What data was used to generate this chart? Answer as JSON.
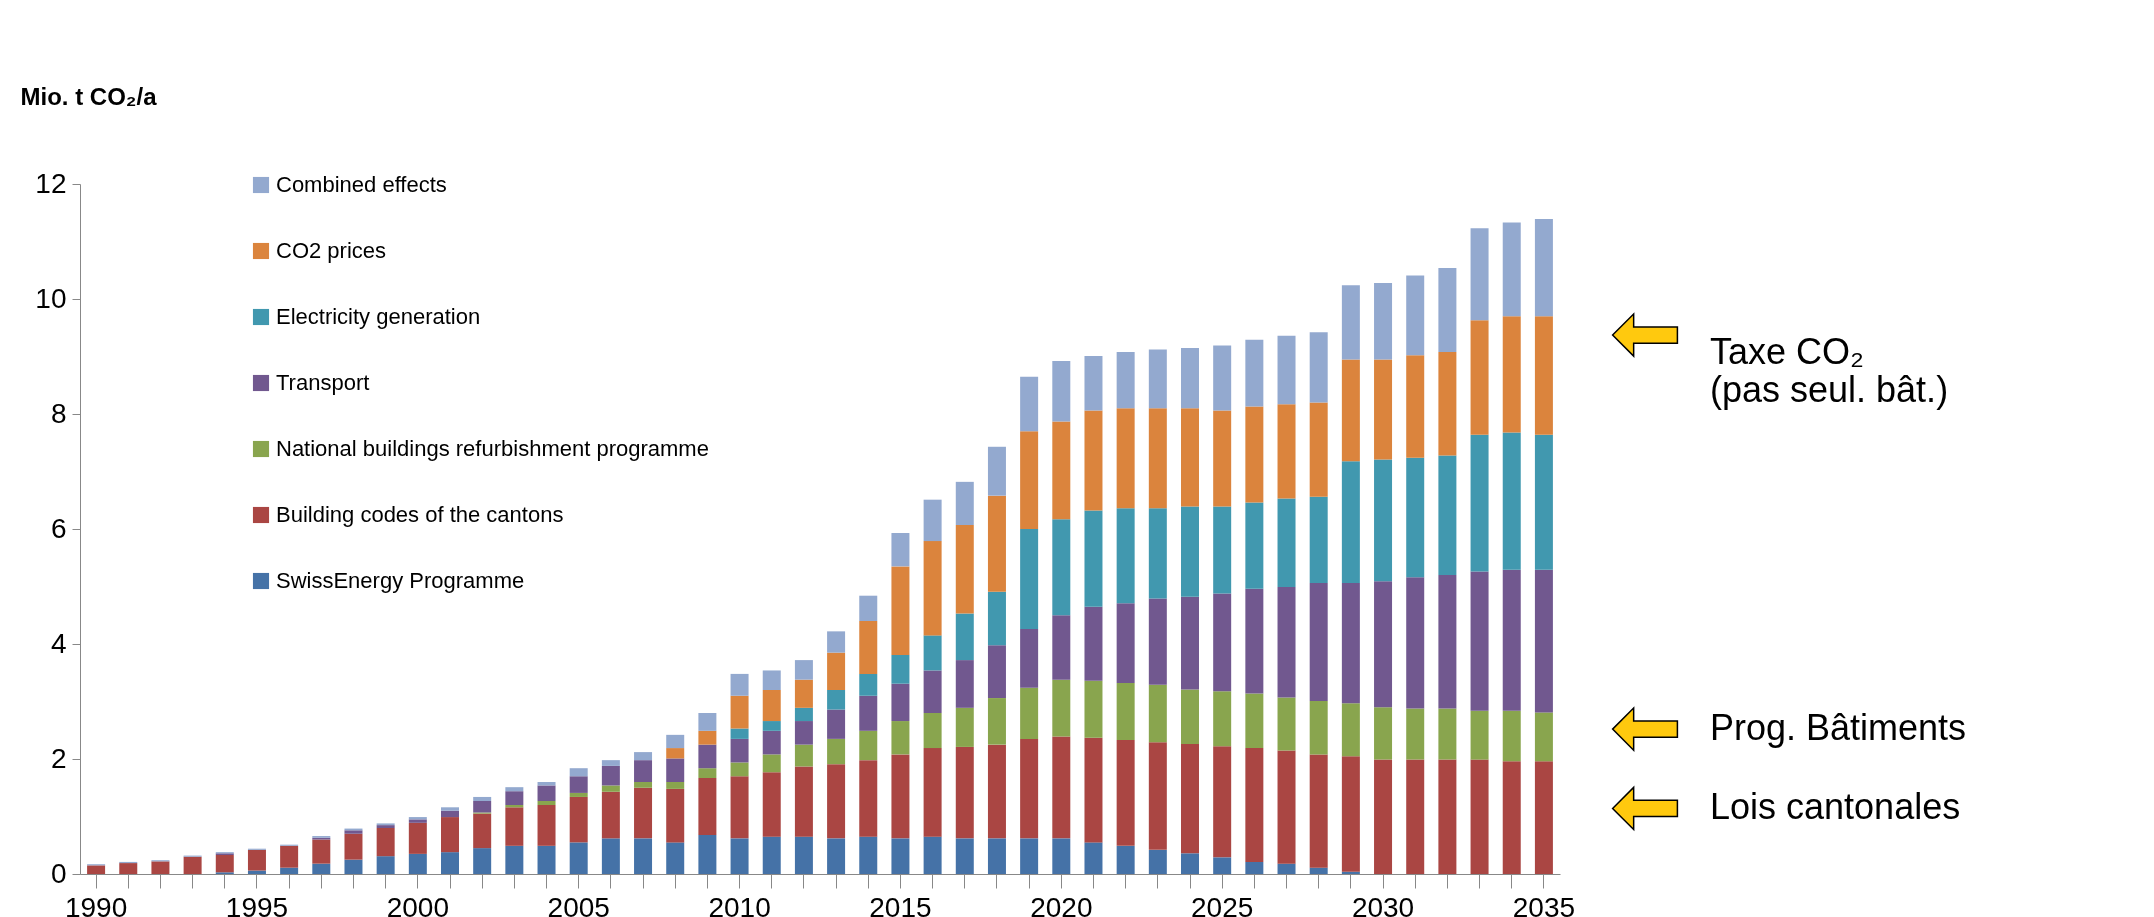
{
  "chart_data": {
    "type": "bar",
    "stacked": true,
    "ylabel": "Mio. t CO₂/a",
    "ylim": [
      0,
      12
    ],
    "yticks": [
      0,
      2,
      4,
      6,
      8,
      10,
      12
    ],
    "grid": false,
    "legend": "top left",
    "categories": [
      "1990",
      null,
      null,
      null,
      null,
      "1995",
      null,
      null,
      null,
      null,
      "2000",
      null,
      null,
      null,
      null,
      "2005",
      null,
      null,
      null,
      null,
      "2010",
      null,
      null,
      null,
      null,
      "2015",
      null,
      null,
      null,
      null,
      "2020",
      null,
      null,
      null,
      null,
      "2025",
      null,
      null,
      null,
      null,
      "2030",
      null,
      null,
      null,
      null,
      "2035"
    ],
    "series": [
      {
        "name": "SwissEnergy Programme",
        "color": "#4572a7",
        "values": [
          0,
          0,
          0,
          0,
          0.03,
          0.06,
          0.11,
          0.18,
          0.25,
          0.31,
          0.35,
          0.38,
          0.45,
          0.49,
          0.49,
          0.55,
          0.62,
          0.62,
          0.55,
          0.68,
          0.62,
          0.65,
          0.65,
          0.62,
          0.65,
          0.62,
          0.65,
          0.62,
          0.62,
          0.62,
          0.62,
          0.55,
          0.49,
          0.42,
          0.36,
          0.29,
          0.21,
          0.18,
          0.11,
          0.04,
          0,
          0,
          0,
          0,
          0,
          0
        ]
      },
      {
        "name": "Building codes of the cantons",
        "color": "#aa4643",
        "values": [
          0.15,
          0.19,
          0.22,
          0.3,
          0.3,
          0.36,
          0.38,
          0.42,
          0.45,
          0.49,
          0.54,
          0.61,
          0.6,
          0.67,
          0.71,
          0.79,
          0.81,
          0.88,
          0.93,
          0.99,
          1.08,
          1.12,
          1.22,
          1.29,
          1.33,
          1.46,
          1.54,
          1.59,
          1.63,
          1.73,
          1.77,
          1.82,
          1.84,
          1.87,
          1.9,
          1.93,
          1.98,
          1.97,
          1.97,
          2.01,
          1.99,
          1.99,
          1.99,
          1.99,
          1.96,
          1.96
        ]
      },
      {
        "name": "National buildings refurbishment programme",
        "color": "#89a54e",
        "values": [
          0,
          0,
          0,
          0,
          0,
          0,
          0,
          0,
          0,
          0,
          0,
          0,
          0.02,
          0.04,
          0.07,
          0.07,
          0.11,
          0.1,
          0.12,
          0.17,
          0.24,
          0.31,
          0.38,
          0.44,
          0.51,
          0.58,
          0.61,
          0.68,
          0.81,
          0.89,
          0.99,
          0.99,
          0.99,
          1.0,
          0.95,
          0.96,
          0.95,
          0.92,
          0.93,
          0.92,
          0.91,
          0.89,
          0.89,
          0.85,
          0.88,
          0.85
        ]
      },
      {
        "name": "Transport",
        "color": "#71588f",
        "values": [
          0,
          0,
          0,
          0,
          0.03,
          0,
          0,
          0.03,
          0.06,
          0.05,
          0.06,
          0.11,
          0.2,
          0.24,
          0.27,
          0.29,
          0.34,
          0.38,
          0.41,
          0.41,
          0.41,
          0.41,
          0.41,
          0.51,
          0.61,
          0.65,
          0.74,
          0.83,
          0.92,
          1.02,
          1.12,
          1.29,
          1.39,
          1.5,
          1.61,
          1.7,
          1.82,
          1.92,
          2.05,
          2.09,
          2.19,
          2.28,
          2.32,
          2.42,
          2.45,
          2.48
        ]
      },
      {
        "name": "Electricity generation",
        "color": "#4198af",
        "values": [
          0,
          0,
          0,
          0,
          0,
          0,
          0,
          0,
          0,
          0,
          0,
          0,
          0,
          0,
          0,
          0,
          0,
          0,
          0,
          0,
          0.18,
          0.17,
          0.23,
          0.34,
          0.38,
          0.5,
          0.61,
          0.81,
          0.93,
          1.74,
          1.67,
          1.67,
          1.65,
          1.57,
          1.57,
          1.51,
          1.5,
          1.54,
          1.5,
          2.12,
          2.12,
          2.08,
          2.08,
          2.38,
          2.39,
          2.35
        ]
      },
      {
        "name": "CO2 prices",
        "color": "#db843d",
        "values": [
          0,
          0,
          0,
          0,
          0,
          0,
          0,
          0,
          0,
          0,
          0,
          0,
          0,
          0,
          0,
          0,
          0,
          0,
          0.18,
          0.24,
          0.57,
          0.54,
          0.49,
          0.65,
          0.92,
          1.54,
          1.64,
          1.54,
          1.67,
          1.7,
          1.7,
          1.74,
          1.74,
          1.74,
          1.71,
          1.67,
          1.67,
          1.64,
          1.64,
          1.77,
          1.74,
          1.78,
          1.8,
          1.99,
          2.02,
          2.06
        ]
      },
      {
        "name": "Combined effects",
        "color": "#93a9cf",
        "values": [
          0.02,
          0.02,
          0.02,
          0.02,
          0.02,
          0.02,
          0.02,
          0.03,
          0.03,
          0.03,
          0.04,
          0.06,
          0.07,
          0.07,
          0.06,
          0.14,
          0.1,
          0.14,
          0.23,
          0.31,
          0.38,
          0.34,
          0.34,
          0.37,
          0.44,
          0.58,
          0.72,
          0.75,
          0.85,
          0.95,
          1.05,
          0.95,
          0.98,
          1.02,
          1.05,
          1.13,
          1.16,
          1.19,
          1.22,
          1.29,
          1.33,
          1.39,
          1.46,
          1.6,
          1.63,
          1.69
        ]
      }
    ],
    "annotations": [
      "Taxe CO₂\n(pas seul. bât.)",
      "Prog. Bâtiments",
      "Lois cantonales"
    ]
  }
}
